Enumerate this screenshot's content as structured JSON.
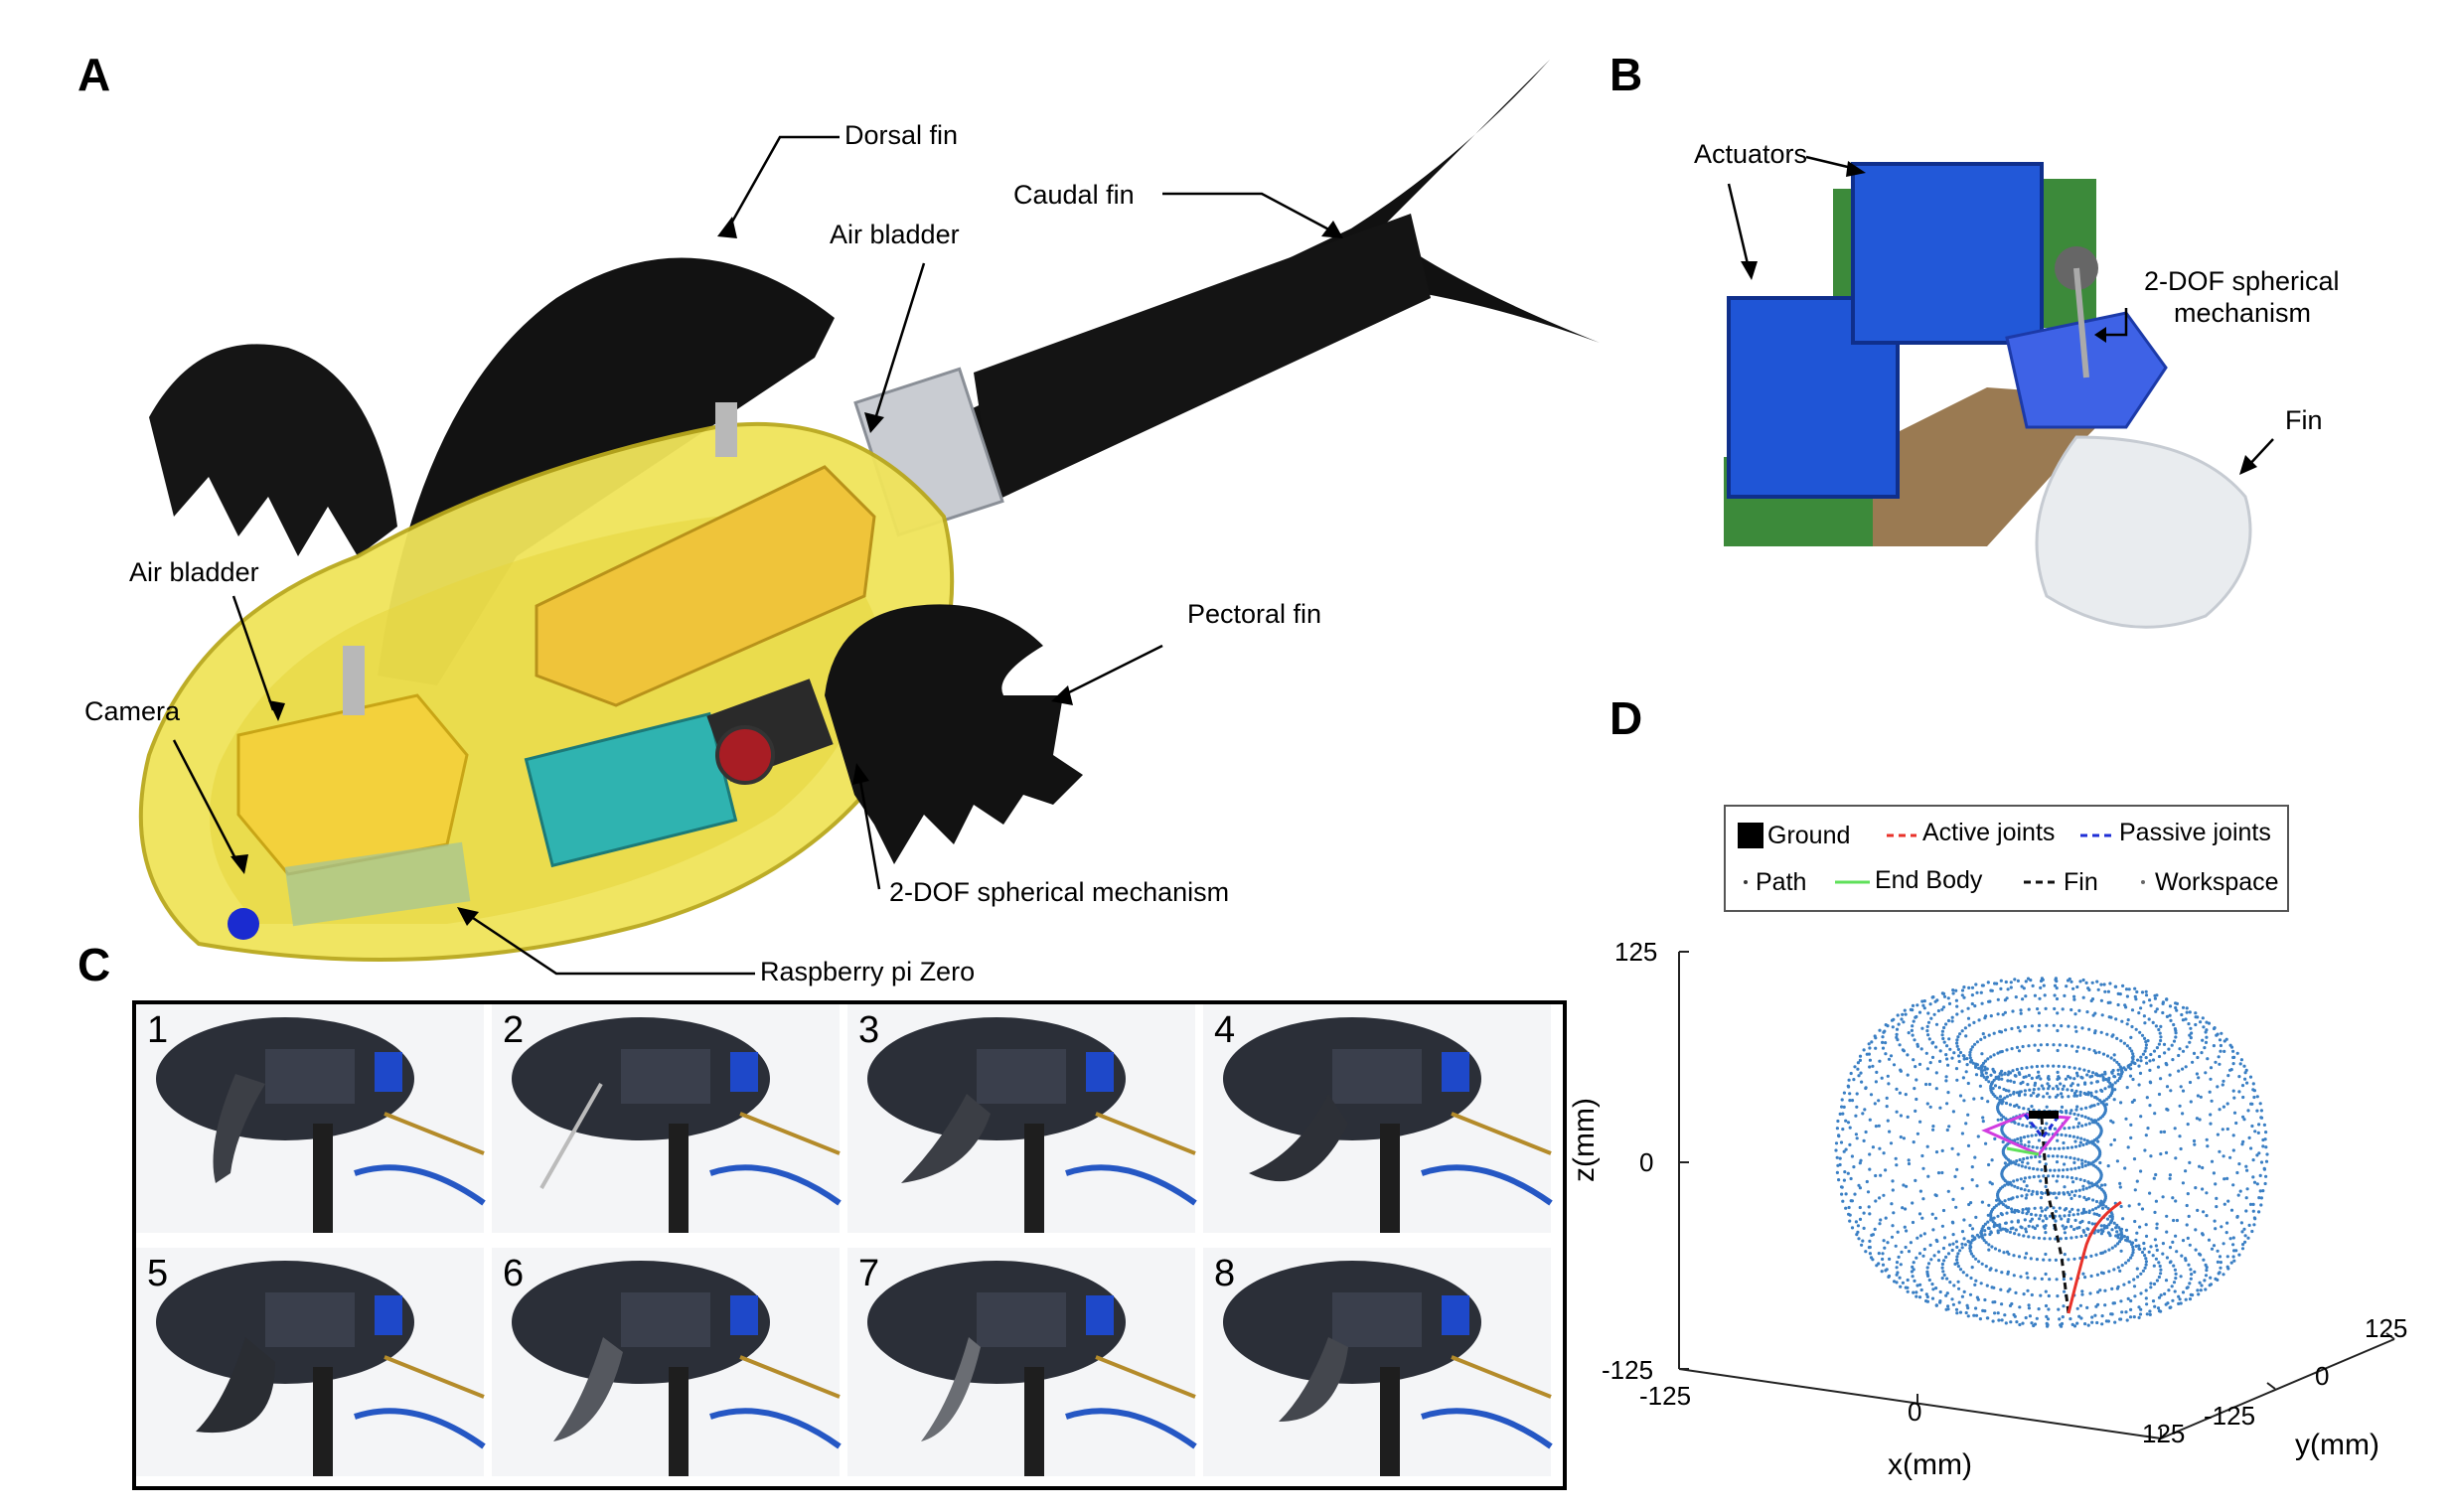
{
  "panels": {
    "a": "A",
    "b": "B",
    "c": "C",
    "d": "D"
  },
  "panel_a": {
    "labels": {
      "dorsal_fin": "Dorsal fin",
      "caudal_fin": "Caudal fin",
      "air_bladder_top": "Air bladder",
      "air_bladder_left": "Air bladder",
      "pectoral_fin": "Pectoral fin",
      "camera": "Camera",
      "mechanism": "2-DOF spherical mechanism",
      "raspberry": "Raspberry pi Zero"
    }
  },
  "panel_b": {
    "labels": {
      "actuators": "Actuators",
      "mechanism_line1": "2-DOF spherical",
      "mechanism_line2": "mechanism",
      "fin": "Fin"
    }
  },
  "panel_c": {
    "frames": [
      "1",
      "2",
      "3",
      "4",
      "5",
      "6",
      "7",
      "8"
    ]
  },
  "panel_d": {
    "legend": {
      "ground": "Ground",
      "active_joints": "Active joints",
      "passive_joints": "Passive joints",
      "path": "Path",
      "end_body": "End Body",
      "fin": "Fin",
      "workspace": "Workspace"
    },
    "axes": {
      "z_label": "z(mm)",
      "x_label": "x(mm)",
      "y_label": "y(mm)",
      "z_ticks": [
        "125",
        "0",
        "-125"
      ],
      "x_ticks": [
        "-125",
        "0",
        "125"
      ],
      "y_ticks": [
        "-125",
        "0",
        "125"
      ]
    },
    "colors": {
      "workspace": "#3a7fc4",
      "active_joints": "#e8322a",
      "passive_joints": "#1f2fd6",
      "end_body": "#5fe05a",
      "fin": "#111111",
      "path": "#d23ce0"
    }
  }
}
